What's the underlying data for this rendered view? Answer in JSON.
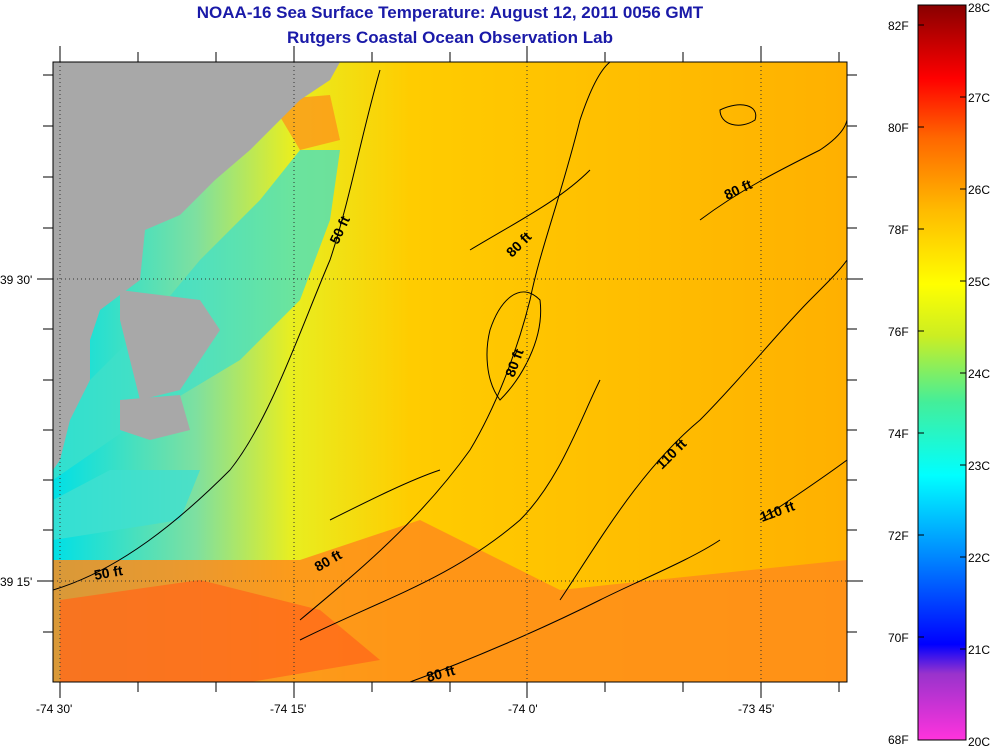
{
  "title": "NOAA-16 Sea Surface Temperature:  August 12, 2011 0056 GMT",
  "subtitle": "Rutgers Coastal Ocean Observation Lab",
  "axes": {
    "lon_ticks": [
      "-74 30'",
      "-74 15'",
      "-74 0'",
      "-73 45'"
    ],
    "lat_ticks": [
      "39 30'",
      "39 15'"
    ]
  },
  "contour_labels": [
    "50 ft",
    "50 ft",
    "80 ft",
    "80 ft",
    "80 ft",
    "80 ft",
    "80 ft",
    "110 ft",
    "110 ft"
  ],
  "colorbar": {
    "fahrenheit": [
      "82F",
      "80F",
      "78F",
      "76F",
      "74F",
      "72F",
      "70F",
      "68F"
    ],
    "celsius": [
      "28C",
      "27C",
      "26C",
      "25C",
      "24C",
      "23C",
      "22C",
      "21C",
      "20C"
    ],
    "colors": [
      "#ff33cc",
      "#9933cc",
      "#0000ff",
      "#0066ff",
      "#00ccff",
      "#00ffee",
      "#33dd99",
      "#99ee33",
      "#ffff00",
      "#ffcc00",
      "#ff9900",
      "#ff6600",
      "#ff0000",
      "#cc0000",
      "#880000"
    ]
  },
  "colors": {
    "land": "#a8a8a8",
    "title": "#1a1aa8"
  }
}
